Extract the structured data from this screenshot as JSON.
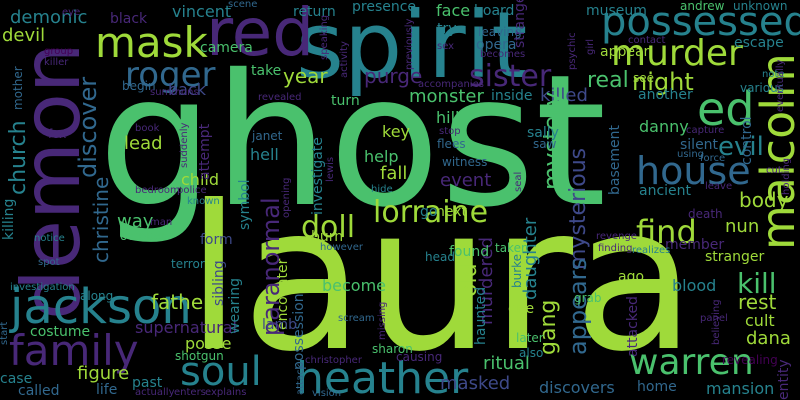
{
  "background": "#000000",
  "palette": {
    "lime": "#9fda3a",
    "green": "#4ac16d",
    "teal": "#26828e",
    "blue": "#31688e",
    "indigo": "#3e4989",
    "purple": "#482878",
    "dark": "#440154"
  },
  "words": [
    {
      "text": "ghost",
      "color": "green"
    },
    {
      "text": "laura",
      "color": "lime"
    },
    {
      "text": "spirit",
      "color": "teal"
    },
    {
      "text": "demon",
      "color": "purple"
    },
    {
      "text": "red",
      "color": "purple"
    },
    {
      "text": "mask",
      "color": "lime"
    },
    {
      "text": "possessed",
      "color": "teal"
    },
    {
      "text": "murder",
      "color": "lime"
    },
    {
      "text": "jackson",
      "color": "teal"
    },
    {
      "text": "family",
      "color": "purple"
    },
    {
      "text": "heather",
      "color": "teal"
    },
    {
      "text": "soul",
      "color": "teal"
    },
    {
      "text": "warren",
      "color": "green"
    },
    {
      "text": "house",
      "color": "blue"
    },
    {
      "text": "malcolm",
      "color": "lime"
    },
    {
      "text": "ed",
      "color": "green"
    },
    {
      "text": "lorraine",
      "color": "lime"
    },
    {
      "text": "doll",
      "color": "lime"
    },
    {
      "text": "roger",
      "color": "blue"
    },
    {
      "text": "sister",
      "color": "purple"
    },
    {
      "text": "paranormal",
      "color": "purple"
    },
    {
      "text": "find",
      "color": "lime"
    },
    {
      "text": "evil",
      "color": "teal"
    },
    {
      "text": "kill",
      "color": "green"
    },
    {
      "text": "night",
      "color": "lime"
    },
    {
      "text": "year",
      "color": "lime"
    },
    {
      "text": "purge",
      "color": "purple"
    },
    {
      "text": "real",
      "color": "green"
    },
    {
      "text": "discover",
      "color": "blue"
    },
    {
      "text": "church",
      "color": "teal"
    },
    {
      "text": "christine",
      "color": "blue"
    },
    {
      "text": "demonic",
      "color": "teal"
    },
    {
      "text": "devil",
      "color": "lime"
    },
    {
      "text": "black",
      "color": "purple"
    },
    {
      "text": "vincent",
      "color": "teal"
    },
    {
      "text": "return",
      "color": "teal"
    },
    {
      "text": "presence",
      "color": "teal"
    },
    {
      "text": "face",
      "color": "green"
    },
    {
      "text": "board",
      "color": "teal"
    },
    {
      "text": "strange",
      "color": "purple"
    },
    {
      "text": "museum",
      "color": "teal"
    },
    {
      "text": "andrew",
      "color": "green"
    },
    {
      "text": "unknown",
      "color": "teal"
    },
    {
      "text": "escape",
      "color": "teal"
    },
    {
      "text": "monster",
      "color": "green"
    },
    {
      "text": "inside",
      "color": "teal"
    },
    {
      "text": "killed",
      "color": "indigo"
    },
    {
      "text": "mystery",
      "color": "green"
    },
    {
      "text": "mysterious",
      "color": "indigo"
    },
    {
      "text": "appears",
      "color": "blue"
    },
    {
      "text": "gang",
      "color": "lime"
    },
    {
      "text": "investigate",
      "color": "teal"
    },
    {
      "text": "event",
      "color": "purple"
    },
    {
      "text": "fall",
      "color": "lime"
    },
    {
      "text": "help",
      "color": "green"
    },
    {
      "text": "key",
      "color": "lime"
    },
    {
      "text": "hill",
      "color": "green"
    },
    {
      "text": "body",
      "color": "lime"
    },
    {
      "text": "nun",
      "color": "lime"
    },
    {
      "text": "rest",
      "color": "lime"
    },
    {
      "text": "cult",
      "color": "lime"
    },
    {
      "text": "dana",
      "color": "lime"
    },
    {
      "text": "blood",
      "color": "teal"
    },
    {
      "text": "old",
      "color": "lime"
    },
    {
      "text": "murdered",
      "color": "purple"
    },
    {
      "text": "daughter",
      "color": "teal"
    },
    {
      "text": "ritual",
      "color": "green"
    },
    {
      "text": "masked",
      "color": "indigo"
    },
    {
      "text": "discovers",
      "color": "blue"
    },
    {
      "text": "mansion",
      "color": "teal"
    },
    {
      "text": "home",
      "color": "blue"
    },
    {
      "text": "father",
      "color": "lime"
    },
    {
      "text": "figure",
      "color": "lime"
    },
    {
      "text": "become",
      "color": "green"
    },
    {
      "text": "posse",
      "color": "lime"
    },
    {
      "text": "costume",
      "color": "green"
    },
    {
      "text": "supernatural",
      "color": "purple"
    },
    {
      "text": "case",
      "color": "teal"
    },
    {
      "text": "called",
      "color": "blue"
    },
    {
      "text": "life",
      "color": "blue"
    },
    {
      "text": "past",
      "color": "teal"
    },
    {
      "text": "lead",
      "color": "lime"
    },
    {
      "text": "child",
      "color": "lime"
    },
    {
      "text": "hell",
      "color": "teal"
    },
    {
      "text": "way",
      "color": "green"
    },
    {
      "text": "form",
      "color": "indigo"
    },
    {
      "text": "burn",
      "color": "lime"
    },
    {
      "text": "next",
      "color": "lime"
    },
    {
      "text": "found",
      "color": "green"
    },
    {
      "text": "danny",
      "color": "green"
    },
    {
      "text": "sally",
      "color": "teal"
    },
    {
      "text": "stranger",
      "color": "lime"
    },
    {
      "text": "ancient",
      "color": "teal"
    },
    {
      "text": "member",
      "color": "purple"
    },
    {
      "text": "death",
      "color": "purple"
    },
    {
      "text": "basement",
      "color": "blue"
    },
    {
      "text": "silent",
      "color": "blue"
    },
    {
      "text": "control",
      "color": "blue"
    },
    {
      "text": "another",
      "color": "teal"
    },
    {
      "text": "see",
      "color": "lime"
    },
    {
      "text": "appear",
      "color": "lime"
    },
    {
      "text": "begin",
      "color": "blue"
    },
    {
      "text": "back",
      "color": "indigo"
    },
    {
      "text": "turn",
      "color": "green"
    },
    {
      "text": "camera",
      "color": "green"
    },
    {
      "text": "take",
      "color": "green"
    },
    {
      "text": "opera",
      "color": "blue"
    },
    {
      "text": "try",
      "color": "teal"
    },
    {
      "text": "attempt",
      "color": "purple"
    },
    {
      "text": "symbol",
      "color": "teal"
    },
    {
      "text": "encounter",
      "color": "lime"
    },
    {
      "text": "possession",
      "color": "blue"
    },
    {
      "text": "sibling",
      "color": "indigo"
    },
    {
      "text": "wearing",
      "color": "teal"
    },
    {
      "text": "lamb",
      "color": "indigo"
    },
    {
      "text": "haunted",
      "color": "teal"
    },
    {
      "text": "one",
      "color": "lime"
    },
    {
      "text": "attacked",
      "color": "purple"
    },
    {
      "text": "killing",
      "color": "teal"
    },
    {
      "text": "mother",
      "color": "blue"
    },
    {
      "text": "october",
      "color": "green"
    },
    {
      "text": "along",
      "color": "teal"
    },
    {
      "text": "terror",
      "color": "teal"
    },
    {
      "text": "shotgun",
      "color": "green"
    },
    {
      "text": "go",
      "color": "teal"
    },
    {
      "text": "ago",
      "color": "lime"
    },
    {
      "text": "saw",
      "color": "blue"
    },
    {
      "text": "witness",
      "color": "blue"
    },
    {
      "text": "flees",
      "color": "blue"
    },
    {
      "text": "leaving",
      "color": "blue"
    },
    {
      "text": "sharon",
      "color": "green"
    },
    {
      "text": "later",
      "color": "green"
    },
    {
      "text": "also",
      "color": "teal"
    },
    {
      "text": "causing",
      "color": "purple"
    },
    {
      "text": "grab",
      "color": "green"
    },
    {
      "text": "head",
      "color": "teal"
    },
    {
      "text": "taken",
      "color": "green"
    },
    {
      "text": "burke",
      "color": "teal"
    },
    {
      "text": "janet",
      "color": "blue"
    },
    {
      "text": "hide",
      "color": "teal"
    },
    {
      "text": "scream",
      "color": "blue"
    },
    {
      "text": "vision",
      "color": "blue"
    },
    {
      "text": "entity",
      "color": "purple"
    },
    {
      "text": "revealing",
      "color": "dark"
    },
    {
      "text": "various",
      "color": "teal"
    },
    {
      "text": "fox",
      "color": "purple"
    },
    {
      "text": "spot",
      "color": "blue"
    },
    {
      "text": "notice",
      "color": "teal"
    },
    {
      "text": "group",
      "color": "dark"
    },
    {
      "text": "killer",
      "color": "purple"
    },
    {
      "text": "book",
      "color": "purple"
    },
    {
      "text": "suddenly",
      "color": "purple"
    },
    {
      "text": "police",
      "color": "purple"
    },
    {
      "text": "known",
      "color": "teal"
    },
    {
      "text": "bedroom",
      "color": "purple"
    },
    {
      "text": "man",
      "color": "purple"
    },
    {
      "text": "however",
      "color": "blue"
    },
    {
      "text": "christopher",
      "color": "purple"
    },
    {
      "text": "attack",
      "color": "blue"
    },
    {
      "text": "speaking",
      "color": "purple"
    },
    {
      "text": "previously",
      "color": "purple"
    },
    {
      "text": "sex",
      "color": "purple"
    },
    {
      "text": "psychic",
      "color": "purple"
    },
    {
      "text": "girl",
      "color": "purple"
    },
    {
      "text": "contact",
      "color": "purple"
    },
    {
      "text": "revealed",
      "color": "purple"
    },
    {
      "text": "summons",
      "color": "purple"
    },
    {
      "text": "becomes",
      "color": "purple"
    },
    {
      "text": "capture",
      "color": "purple"
    },
    {
      "text": "using",
      "color": "blue"
    },
    {
      "text": "force",
      "color": "blue"
    },
    {
      "text": "leave",
      "color": "purple"
    },
    {
      "text": "realizes",
      "color": "teal"
    },
    {
      "text": "finding",
      "color": "purple"
    },
    {
      "text": "revenge",
      "color": "purple"
    },
    {
      "text": "panel",
      "color": "purple"
    },
    {
      "text": "note",
      "color": "teal"
    },
    {
      "text": "eventually",
      "color": "purple"
    },
    {
      "text": "believing",
      "color": "purple"
    },
    {
      "text": "holding",
      "color": "purple"
    },
    {
      "text": "missing",
      "color": "purple"
    },
    {
      "text": "opening",
      "color": "purple"
    },
    {
      "text": "scene",
      "color": "blue"
    },
    {
      "text": "start",
      "color": "blue"
    },
    {
      "text": "investigation",
      "color": "teal"
    },
    {
      "text": "stop",
      "color": "purple"
    },
    {
      "text": "actually",
      "color": "purple"
    },
    {
      "text": "enters",
      "color": "purple"
    },
    {
      "text": "explains",
      "color": "purple"
    },
    {
      "text": "activity",
      "color": "purple"
    },
    {
      "text": "accompanies",
      "color": "purple"
    },
    {
      "text": "lewis",
      "color": "purple"
    },
    {
      "text": "seal",
      "color": "purple"
    },
    {
      "text": "eye",
      "color": "purple"
    },
    {
      "text": "cut",
      "color": "purple"
    }
  ]
}
